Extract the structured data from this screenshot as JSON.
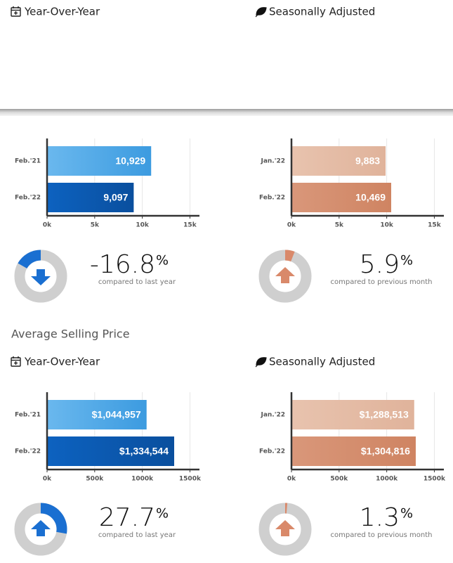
{
  "headings": [
    "Year-Over-Year",
    "Seasonally Adjusted",
    "Year-Over-Year",
    "Seasonally Adjusted"
  ],
  "section_title": "Average Selling Price",
  "chart_data": [
    {
      "type": "hbar",
      "categories": [
        "Feb.'21",
        "Feb.'22"
      ],
      "values": [
        10929,
        9097
      ],
      "value_labels": [
        "10,929",
        "9,097"
      ],
      "colors": [
        [
          "#6ab8ee",
          "#3c9be0"
        ],
        [
          "#0d62c0",
          "#0a4f9e"
        ]
      ],
      "xlim": [
        0,
        16000
      ],
      "xticks": [
        {
          "value": 0,
          "label": "0k"
        },
        {
          "value": 5000,
          "label": "5k"
        },
        {
          "value": 10000,
          "label": "10k"
        },
        {
          "value": 15000,
          "label": "15k"
        }
      ],
      "grid": true
    },
    {
      "type": "hbar",
      "categories": [
        "Jan.'22",
        "Feb.'22"
      ],
      "values": [
        9883,
        10469
      ],
      "value_labels": [
        "9,883",
        "10,469"
      ],
      "colors": [
        [
          "#e8c3ae",
          "#e0b39b"
        ],
        [
          "#d9977a",
          "#cf8462"
        ]
      ],
      "xlim": [
        0,
        16000
      ],
      "xticks": [
        {
          "value": 0,
          "label": "0k"
        },
        {
          "value": 5000,
          "label": "5k"
        },
        {
          "value": 10000,
          "label": "10k"
        },
        {
          "value": 15000,
          "label": "15k"
        }
      ],
      "grid": true
    },
    {
      "type": "donut",
      "value": -16.8,
      "unit": "%",
      "caption": "compared to last year",
      "color": "#1a6fd1"
    },
    {
      "type": "donut",
      "value": 5.9,
      "unit": "%",
      "caption": "compared to previous month",
      "color": "#d9896a"
    },
    {
      "type": "hbar",
      "categories": [
        "Feb.'21",
        "Feb.'22"
      ],
      "values": [
        1044957,
        1334544
      ],
      "value_labels": [
        "$1,044,957",
        "$1,334,544"
      ],
      "colors": [
        [
          "#6ab8ee",
          "#3c9be0"
        ],
        [
          "#0d62c0",
          "#0a4f9e"
        ]
      ],
      "xlim": [
        0,
        1600000
      ],
      "xticks": [
        {
          "value": 0,
          "label": "0k"
        },
        {
          "value": 500000,
          "label": "500k"
        },
        {
          "value": 1000000,
          "label": "1000k"
        },
        {
          "value": 1500000,
          "label": "1500k"
        }
      ],
      "grid": true
    },
    {
      "type": "hbar",
      "categories": [
        "Jan.'22",
        "Feb.'22"
      ],
      "values": [
        1288513,
        1304816
      ],
      "value_labels": [
        "$1,288,513",
        "$1,304,816"
      ],
      "colors": [
        [
          "#e8c3ae",
          "#e0b39b"
        ],
        [
          "#d9977a",
          "#cf8462"
        ]
      ],
      "xlim": [
        0,
        1600000
      ],
      "xticks": [
        {
          "value": 0,
          "label": "0k"
        },
        {
          "value": 500000,
          "label": "500k"
        },
        {
          "value": 1000000,
          "label": "1000k"
        },
        {
          "value": 1500000,
          "label": "1500k"
        }
      ],
      "grid": true
    },
    {
      "type": "donut",
      "value": 27.7,
      "unit": "%",
      "caption": "compared to last year",
      "color": "#1a6fd1"
    },
    {
      "type": "donut",
      "value": 1.3,
      "unit": "%",
      "caption": "compared to previous month",
      "color": "#d9896a"
    }
  ]
}
